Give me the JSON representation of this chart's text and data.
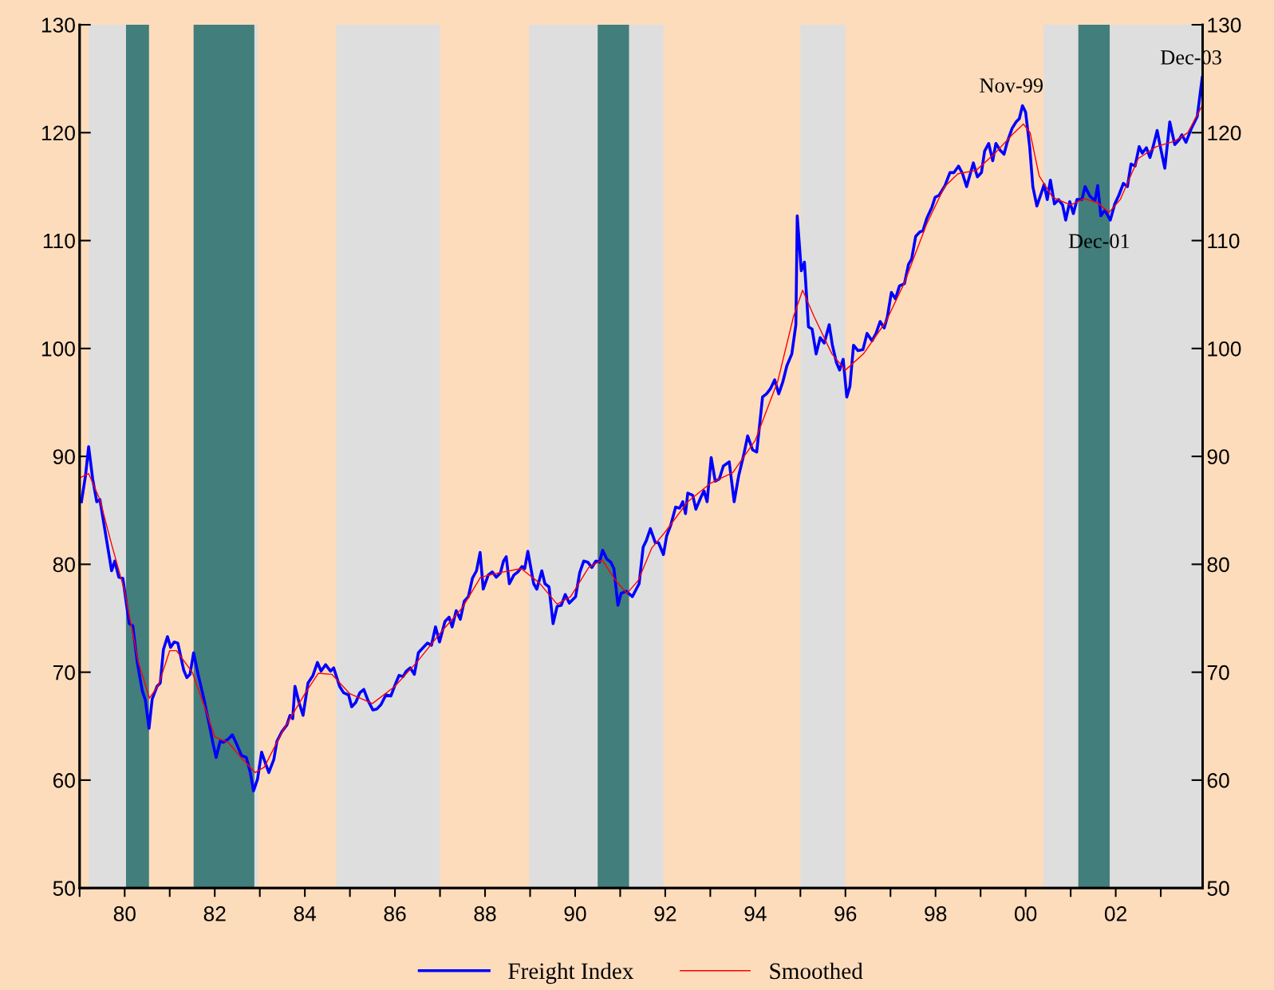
{
  "chart_data": {
    "type": "line",
    "xlim": [
      1979,
      2003.93
    ],
    "ylim": [
      50,
      130
    ],
    "yticks": [
      50,
      60,
      70,
      80,
      90,
      100,
      110,
      120,
      130
    ],
    "y2lim": [
      50,
      130
    ],
    "y2ticks": [
      50,
      60,
      70,
      80,
      90,
      100,
      110,
      120,
      130
    ],
    "xticks": [
      {
        "value": 1979,
        "label": null
      },
      {
        "value": 1980,
        "label": "80"
      },
      {
        "value": 1981,
        "label": null
      },
      {
        "value": 1982,
        "label": "82"
      },
      {
        "value": 1983,
        "label": null
      },
      {
        "value": 1984,
        "label": "84"
      },
      {
        "value": 1985,
        "label": null
      },
      {
        "value": 1986,
        "label": "86"
      },
      {
        "value": 1987,
        "label": null
      },
      {
        "value": 1988,
        "label": "88"
      },
      {
        "value": 1989,
        "label": null
      },
      {
        "value": 1990,
        "label": "90"
      },
      {
        "value": 1991,
        "label": null
      },
      {
        "value": 1992,
        "label": "92"
      },
      {
        "value": 1993,
        "label": null
      },
      {
        "value": 1994,
        "label": "94"
      },
      {
        "value": 1995,
        "label": null
      },
      {
        "value": 1996,
        "label": "96"
      },
      {
        "value": 1997,
        "label": null
      },
      {
        "value": 1998,
        "label": "98"
      },
      {
        "value": 1999,
        "label": null
      },
      {
        "value": 2000,
        "label": "00"
      },
      {
        "value": 2001,
        "label": null
      },
      {
        "value": 2002,
        "label": "02"
      },
      {
        "value": 2003,
        "label": null
      }
    ],
    "grid": false,
    "legend": "bottom",
    "marker": "none",
    "bands": [
      {
        "axis": "x",
        "from": 1979.2,
        "to": 1980.03,
        "color": "#dedede"
      },
      {
        "axis": "x",
        "from": 1980.03,
        "to": 1980.54,
        "color": "#417e7c"
      },
      {
        "axis": "x",
        "from": 1981.53,
        "to": 1982.88,
        "color": "#417e7c"
      },
      {
        "axis": "x",
        "from": 1982.88,
        "to": 1982.95,
        "color": "#dedede"
      },
      {
        "axis": "x",
        "from": 1984.7,
        "to": 1987.0,
        "color": "#dedede"
      },
      {
        "axis": "x",
        "from": 1988.98,
        "to": 1990.5,
        "color": "#dedede"
      },
      {
        "axis": "x",
        "from": 1990.5,
        "to": 1991.2,
        "color": "#417e7c"
      },
      {
        "axis": "x",
        "from": 1991.2,
        "to": 1991.96,
        "color": "#dedede"
      },
      {
        "axis": "x",
        "from": 1995.0,
        "to": 1996.0,
        "color": "#dedede"
      },
      {
        "axis": "x",
        "from": 2000.4,
        "to": 2001.17,
        "color": "#dedede"
      },
      {
        "axis": "x",
        "from": 2001.17,
        "to": 2001.87,
        "color": "#417e7c"
      },
      {
        "axis": "x",
        "from": 2001.87,
        "to": 2003.93,
        "color": "#dedede"
      }
    ],
    "annotations": [
      {
        "text": "Nov-99",
        "x": 1999.93,
        "y": 122.5
      },
      {
        "text": "Dec-01",
        "x": 2001.88,
        "y": 111.9
      },
      {
        "text": "Dec-03",
        "x": 2003.92,
        "y": 125.1
      }
    ],
    "series": [
      {
        "name": "Freight Index",
        "color": "#0000ff",
        "line_style": "solid",
        "x": [
          1979.04,
          1979.13,
          1979.2,
          1979.29,
          1979.38,
          1979.45,
          1979.6,
          1979.71,
          1979.78,
          1979.87,
          1979.96,
          1980.1,
          1980.18,
          1980.28,
          1980.39,
          1980.46,
          1980.54,
          1980.61,
          1980.72,
          1980.79,
          1980.86,
          1980.95,
          1981.02,
          1981.1,
          1981.18,
          1981.31,
          1981.38,
          1981.45,
          1981.53,
          1981.63,
          1981.76,
          1981.87,
          1981.96,
          1982.03,
          1982.12,
          1982.19,
          1982.3,
          1982.39,
          1982.48,
          1982.59,
          1982.7,
          1982.79,
          1982.86,
          1982.95,
          1983.04,
          1983.13,
          1983.2,
          1983.31,
          1983.38,
          1983.49,
          1983.6,
          1983.67,
          1983.73,
          1983.78,
          1983.87,
          1983.96,
          1984.07,
          1984.18,
          1984.28,
          1984.36,
          1984.46,
          1984.57,
          1984.64,
          1984.77,
          1984.86,
          1984.97,
          1985.04,
          1985.13,
          1985.22,
          1985.31,
          1985.4,
          1985.51,
          1985.6,
          1985.69,
          1985.8,
          1985.91,
          1986.0,
          1986.09,
          1986.18,
          1986.25,
          1986.34,
          1986.43,
          1986.52,
          1986.63,
          1986.72,
          1986.81,
          1986.9,
          1986.99,
          1987.11,
          1987.2,
          1987.27,
          1987.36,
          1987.45,
          1987.54,
          1987.63,
          1987.72,
          1987.81,
          1987.89,
          1987.96,
          1988.07,
          1988.16,
          1988.25,
          1988.34,
          1988.41,
          1988.47,
          1988.54,
          1988.64,
          1988.73,
          1988.82,
          1988.88,
          1988.95,
          1989.08,
          1989.15,
          1989.26,
          1989.33,
          1989.42,
          1989.51,
          1989.6,
          1989.69,
          1989.78,
          1989.87,
          1990.01,
          1990.1,
          1990.19,
          1990.28,
          1990.37,
          1990.46,
          1990.54,
          1990.61,
          1990.7,
          1990.79,
          1990.86,
          1990.95,
          1991.02,
          1991.13,
          1991.27,
          1991.42,
          1991.51,
          1991.58,
          1991.67,
          1991.78,
          1991.85,
          1991.96,
          1992.03,
          1992.12,
          1992.23,
          1992.32,
          1992.39,
          1992.45,
          1992.5,
          1992.61,
          1992.68,
          1992.79,
          1992.86,
          1992.93,
          1993.02,
          1993.11,
          1993.2,
          1993.29,
          1993.42,
          1993.53,
          1993.63,
          1993.74,
          1993.83,
          1993.94,
          1994.03,
          1994.1,
          1994.16,
          1994.25,
          1994.34,
          1994.43,
          1994.52,
          1994.61,
          1994.7,
          1994.81,
          1994.9,
          1994.93,
          1995.02,
          1995.09,
          1995.18,
          1995.26,
          1995.35,
          1995.44,
          1995.53,
          1995.64,
          1995.71,
          1995.8,
          1995.87,
          1995.95,
          1996.03,
          1996.1,
          1996.18,
          1996.28,
          1996.39,
          1996.48,
          1996.59,
          1996.68,
          1996.77,
          1996.86,
          1996.93,
          1997.02,
          1997.11,
          1997.2,
          1997.31,
          1997.4,
          1997.47,
          1997.56,
          1997.65,
          1997.72,
          1997.81,
          1997.92,
          1997.99,
          1998.08,
          1998.21,
          1998.32,
          1998.41,
          1998.51,
          1998.6,
          1998.69,
          1998.84,
          1998.93,
          1999.02,
          1999.09,
          1999.18,
          1999.27,
          1999.34,
          1999.43,
          1999.52,
          1999.59,
          1999.7,
          1999.79,
          1999.86,
          1999.93,
          2000.0,
          2000.09,
          2000.16,
          2000.25,
          2000.34,
          2000.41,
          2000.48,
          2000.55,
          2000.64,
          2000.73,
          2000.82,
          2000.89,
          2000.98,
          2001.06,
          2001.14,
          2001.25,
          2001.32,
          2001.43,
          2001.54,
          2001.6,
          2001.67,
          2001.76,
          2001.88,
          2001.98,
          2002.07,
          2002.17,
          2002.26,
          2002.34,
          2002.43,
          2002.52,
          2002.59,
          2002.68,
          2002.76,
          2002.83,
          2002.92,
          2003.0,
          2003.09,
          2003.2,
          2003.31,
          2003.4,
          2003.47,
          2003.56,
          2003.68,
          2003.81,
          2003.92
        ],
        "values": [
          85.8,
          88.2,
          90.9,
          87.9,
          85.8,
          86.0,
          82.2,
          79.4,
          80.3,
          78.8,
          78.7,
          74.5,
          74.3,
          70.9,
          68.3,
          67.4,
          64.8,
          67.5,
          68.7,
          69.0,
          72.1,
          73.3,
          72.3,
          72.8,
          72.7,
          70.2,
          69.5,
          69.8,
          71.8,
          69.8,
          67.5,
          65.3,
          63.4,
          62.1,
          63.6,
          63.5,
          63.8,
          64.2,
          63.4,
          62.3,
          62.1,
          60.7,
          59.0,
          60.1,
          62.6,
          61.5,
          60.7,
          61.9,
          63.6,
          64.5,
          65.1,
          66.0,
          65.7,
          68.7,
          67.2,
          66.0,
          69.0,
          69.7,
          70.9,
          70.1,
          70.7,
          70.1,
          70.4,
          68.7,
          68.1,
          67.9,
          66.8,
          67.2,
          68.1,
          68.4,
          67.4,
          66.5,
          66.6,
          67.0,
          67.9,
          67.8,
          68.8,
          69.7,
          69.6,
          70.1,
          70.4,
          69.8,
          71.8,
          72.3,
          72.7,
          72.5,
          74.2,
          72.8,
          74.7,
          75.1,
          74.2,
          75.7,
          74.9,
          76.6,
          77.0,
          78.7,
          79.4,
          81.1,
          77.7,
          79.0,
          79.3,
          78.8,
          79.2,
          80.3,
          80.7,
          78.2,
          79.0,
          79.3,
          79.8,
          79.6,
          81.2,
          78.2,
          77.7,
          79.4,
          78.2,
          77.9,
          74.5,
          76.1,
          76.2,
          77.2,
          76.4,
          77.0,
          79.2,
          80.3,
          80.2,
          79.7,
          80.3,
          80.2,
          81.3,
          80.5,
          80.2,
          79.6,
          76.2,
          77.3,
          77.5,
          77.0,
          78.2,
          81.6,
          82.2,
          83.3,
          82.0,
          82.0,
          80.9,
          82.6,
          83.6,
          85.3,
          85.2,
          85.8,
          84.7,
          86.6,
          86.4,
          85.1,
          86.2,
          86.8,
          85.8,
          89.9,
          87.7,
          87.9,
          89.1,
          89.5,
          85.8,
          88.2,
          90.1,
          91.9,
          90.6,
          90.4,
          93.1,
          95.5,
          95.8,
          96.3,
          97.1,
          95.8,
          96.9,
          98.4,
          99.5,
          102.2,
          112.3,
          107.2,
          108.0,
          102.0,
          101.8,
          99.5,
          101.0,
          100.5,
          102.2,
          100.3,
          98.7,
          98.0,
          99.0,
          95.5,
          96.5,
          100.3,
          99.8,
          99.9,
          101.4,
          100.7,
          101.4,
          102.5,
          101.9,
          102.9,
          105.2,
          104.6,
          105.8,
          106.0,
          107.8,
          108.3,
          110.4,
          110.8,
          110.9,
          112.1,
          113.1,
          114.0,
          114.2,
          115.1,
          116.3,
          116.3,
          116.9,
          116.2,
          115.0,
          117.2,
          115.9,
          116.3,
          118.3,
          119.0,
          117.4,
          119.0,
          118.4,
          118.0,
          119.1,
          120.4,
          121.0,
          121.3,
          122.5,
          121.9,
          118.7,
          115.0,
          113.2,
          114.3,
          115.2,
          113.8,
          115.6,
          113.4,
          113.8,
          113.3,
          111.9,
          113.6,
          112.5,
          113.8,
          113.8,
          115.0,
          114.1,
          113.7,
          115.1,
          112.3,
          112.8,
          111.9,
          113.4,
          114.2,
          115.3,
          115.0,
          117.1,
          116.9,
          118.7,
          118.1,
          118.6,
          117.7,
          118.7,
          120.2,
          118.5,
          116.7,
          121.0,
          118.9,
          119.3,
          119.8,
          119.1,
          120.4,
          121.5,
          125.1
        ]
      },
      {
        "name": "Smoothed",
        "color": "#ff0000",
        "line_style": "solid",
        "x": [
          1979.0,
          1979.2,
          1979.45,
          1979.7,
          1980.0,
          1980.3,
          1980.55,
          1980.75,
          1981.0,
          1981.15,
          1981.5,
          1981.8,
          1982.0,
          1982.3,
          1982.6,
          1982.9,
          1983.1,
          1983.5,
          1984.0,
          1984.3,
          1984.6,
          1985.0,
          1985.5,
          1986.0,
          1986.5,
          1987.0,
          1987.5,
          1987.9,
          1988.3,
          1988.8,
          1989.2,
          1989.6,
          1989.9,
          1990.3,
          1990.6,
          1990.9,
          1991.15,
          1991.4,
          1991.7,
          1992.0,
          1992.5,
          1993.0,
          1993.5,
          1994.0,
          1994.5,
          1994.85,
          1995.05,
          1995.3,
          1995.7,
          1996.0,
          1996.4,
          1996.9,
          1997.3,
          1997.8,
          1998.2,
          1998.5,
          1998.9,
          1999.3,
          1999.7,
          1999.95,
          2000.1,
          2000.3,
          2000.6,
          2001.0,
          2001.3,
          2001.6,
          2001.85,
          2002.1,
          2002.5,
          2002.9,
          2003.3,
          2003.6,
          2003.92
        ],
        "values": [
          88.0,
          88.4,
          86.0,
          82.0,
          77.5,
          71.0,
          67.6,
          68.8,
          72.0,
          72.0,
          70.0,
          66.5,
          64.0,
          63.5,
          62.0,
          60.7,
          61.2,
          64.5,
          68.0,
          69.9,
          69.8,
          68.0,
          67.1,
          68.7,
          71.0,
          73.6,
          76.0,
          78.8,
          79.2,
          79.6,
          78.3,
          76.3,
          77.0,
          79.7,
          80.4,
          78.5,
          77.3,
          78.5,
          81.5,
          83.0,
          85.8,
          87.5,
          88.5,
          91.5,
          97.0,
          103.0,
          105.4,
          103.0,
          99.5,
          98.0,
          99.5,
          102.5,
          106.0,
          111.5,
          115.0,
          116.2,
          116.5,
          118.0,
          119.8,
          120.8,
          120.0,
          116.0,
          114.0,
          113.3,
          113.9,
          113.5,
          112.6,
          113.8,
          117.6,
          118.7,
          119.2,
          120.0,
          122.5
        ]
      }
    ]
  }
}
